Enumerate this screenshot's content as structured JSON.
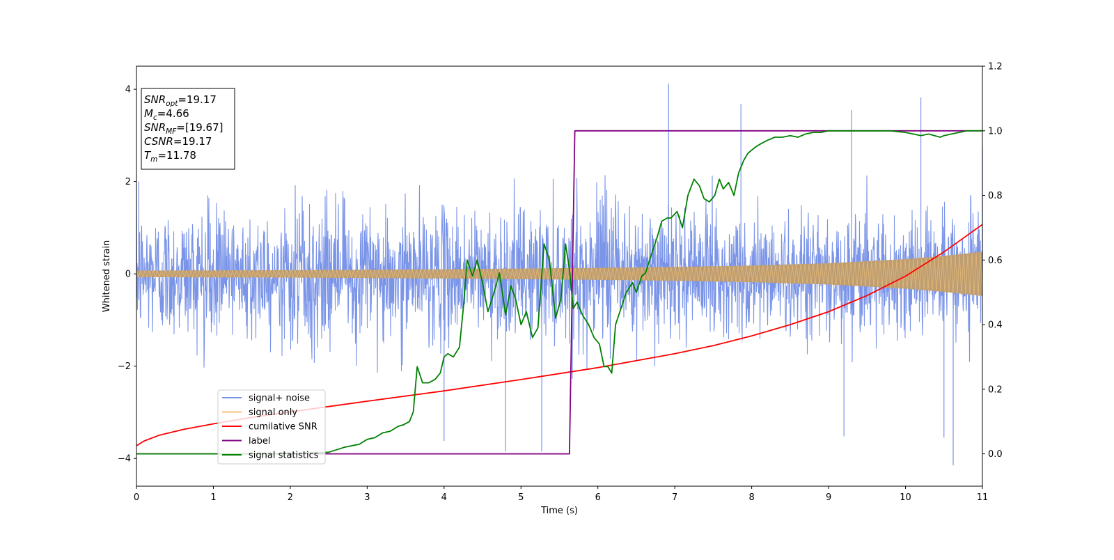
{
  "chart_data": {
    "type": "line",
    "xlabel": "Time (s)",
    "ylabel": "Whitened strain",
    "xlim": [
      0,
      11
    ],
    "ylim": [
      -4.6,
      4.5
    ],
    "y2lim": [
      -0.1,
      1.2
    ],
    "xticks": [
      "0",
      "1",
      "2",
      "3",
      "4",
      "5",
      "6",
      "7",
      "8",
      "9",
      "10",
      "11"
    ],
    "yticks": [
      "−4",
      "−2",
      "0",
      "2",
      "4"
    ],
    "y2ticks": [
      "0.0",
      "0.2",
      "0.4",
      "0.6",
      "0.8",
      "1.0",
      "1.2"
    ],
    "legend_position": "lower-left",
    "annotation": [
      {
        "main": "SNR",
        "sub": "opt",
        "value": "=19.17"
      },
      {
        "main": "M",
        "sub": "c",
        "value": "=4.66"
      },
      {
        "main": "SNR",
        "sub": "MF",
        "value": "=[19.67]"
      },
      {
        "main": "CSNR",
        "sub": "",
        "value": "=19.17"
      },
      {
        "main": "T",
        "sub": "m",
        "value": "=11.78"
      }
    ],
    "series": [
      {
        "name": "signal+ noise",
        "axis": "left",
        "color": "#7a94e8",
        "envelope_1sigma": 0.55,
        "typical_max": 2.3,
        "extremes": [
          [
            6.92,
            4.12
          ],
          [
            10.2,
            3.82
          ],
          [
            7.86,
            3.68
          ],
          [
            9.3,
            3.55
          ],
          [
            10.62,
            -4.15
          ],
          [
            9.2,
            -3.52
          ],
          [
            4.0,
            -3.62
          ],
          [
            5.27,
            -3.85
          ],
          [
            4.8,
            -3.85
          ],
          [
            10.5,
            -3.55
          ],
          [
            0.03,
            2.0
          ],
          [
            11.0,
            2.77
          ]
        ]
      },
      {
        "name": "signal only",
        "axis": "left",
        "color": "#f5c37a",
        "amplitude": [
          [
            0,
            0.07
          ],
          [
            2,
            0.08
          ],
          [
            4,
            0.1
          ],
          [
            6,
            0.13
          ],
          [
            7,
            0.15
          ],
          [
            8,
            0.18
          ],
          [
            9,
            0.23
          ],
          [
            10,
            0.32
          ],
          [
            10.5,
            0.39
          ],
          [
            11,
            0.48
          ]
        ]
      },
      {
        "name": "cumilative SNR",
        "axis": "right",
        "color": "#ff0000",
        "x": [
          0,
          0.1,
          0.3,
          0.6,
          1.0,
          1.5,
          2.0,
          3.0,
          4.0,
          5.0,
          6.0,
          7.0,
          7.5,
          8.0,
          8.5,
          9.0,
          9.5,
          10.0,
          10.5,
          11.0
        ],
        "values": [
          0.025,
          0.04,
          0.058,
          0.075,
          0.093,
          0.113,
          0.13,
          0.163,
          0.195,
          0.23,
          0.267,
          0.31,
          0.335,
          0.365,
          0.4,
          0.44,
          0.49,
          0.55,
          0.625,
          0.71
        ]
      },
      {
        "name": "label",
        "axis": "right",
        "color": "#800080",
        "x": [
          0,
          5.63,
          5.7,
          11.0
        ],
        "values": [
          0.0,
          0.0,
          1.0,
          1.0
        ]
      },
      {
        "name": "signal statistics",
        "axis": "right",
        "color": "#008000",
        "x": [
          0,
          0.5,
          1.0,
          1.5,
          2.0,
          2.3,
          2.5,
          2.7,
          2.9,
          3.0,
          3.1,
          3.2,
          3.3,
          3.4,
          3.47,
          3.55,
          3.6,
          3.65,
          3.72,
          3.8,
          3.88,
          3.95,
          4.0,
          4.05,
          4.12,
          4.2,
          4.25,
          4.3,
          4.37,
          4.43,
          4.5,
          4.57,
          4.65,
          4.72,
          4.8,
          4.87,
          4.93,
          5.0,
          5.07,
          5.15,
          5.22,
          5.3,
          5.37,
          5.45,
          5.52,
          5.58,
          5.63,
          5.68,
          5.73,
          5.8,
          5.88,
          5.95,
          6.02,
          6.08,
          6.13,
          6.18,
          6.23,
          6.3,
          6.37,
          6.45,
          6.5,
          6.57,
          6.62,
          6.7,
          6.77,
          6.83,
          6.9,
          6.95,
          7.03,
          7.1,
          7.17,
          7.25,
          7.32,
          7.38,
          7.45,
          7.52,
          7.58,
          7.63,
          7.7,
          7.77,
          7.83,
          7.9,
          7.95,
          8.0,
          8.05,
          8.12,
          8.2,
          8.3,
          8.4,
          8.5,
          8.6,
          8.7,
          8.8,
          8.9,
          9.0,
          9.2,
          9.5,
          9.8,
          10.0,
          10.1,
          10.2,
          10.3,
          10.45,
          10.5,
          10.6,
          10.8,
          11.0
        ],
        "values": [
          0.0,
          0.0,
          0.0,
          0.0,
          0.0,
          0.003,
          0.005,
          0.02,
          0.03,
          0.045,
          0.05,
          0.065,
          0.07,
          0.085,
          0.09,
          0.1,
          0.13,
          0.27,
          0.22,
          0.22,
          0.23,
          0.25,
          0.3,
          0.31,
          0.3,
          0.33,
          0.45,
          0.6,
          0.55,
          0.6,
          0.53,
          0.44,
          0.5,
          0.56,
          0.43,
          0.52,
          0.48,
          0.4,
          0.44,
          0.36,
          0.39,
          0.65,
          0.6,
          0.42,
          0.48,
          0.65,
          0.57,
          0.45,
          0.47,
          0.43,
          0.4,
          0.36,
          0.34,
          0.27,
          0.27,
          0.25,
          0.4,
          0.45,
          0.5,
          0.53,
          0.5,
          0.55,
          0.56,
          0.62,
          0.67,
          0.72,
          0.73,
          0.73,
          0.75,
          0.7,
          0.8,
          0.85,
          0.83,
          0.79,
          0.78,
          0.8,
          0.85,
          0.82,
          0.84,
          0.8,
          0.87,
          0.91,
          0.93,
          0.94,
          0.95,
          0.96,
          0.97,
          0.98,
          0.98,
          0.985,
          0.98,
          0.99,
          0.995,
          0.995,
          1.0,
          1.0,
          1.0,
          1.0,
          0.995,
          0.99,
          0.985,
          0.99,
          0.98,
          0.985,
          0.99,
          1.0,
          1.0
        ]
      }
    ]
  }
}
